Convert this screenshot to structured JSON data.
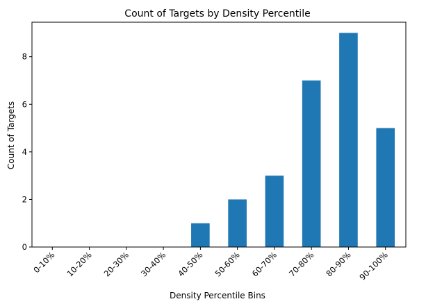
{
  "chart_data": {
    "type": "bar",
    "title": "Count of Targets by Density Percentile",
    "xlabel": "Density Percentile Bins",
    "ylabel": "Count of Targets",
    "categories": [
      "0-10%",
      "10-20%",
      "20-30%",
      "30-40%",
      "40-50%",
      "50-60%",
      "60-70%",
      "70-80%",
      "80-90%",
      "90-100%"
    ],
    "values": [
      0,
      0,
      0,
      0,
      1,
      2,
      3,
      7,
      9,
      5
    ],
    "ylim": [
      0,
      9.45
    ],
    "yticks": [
      0,
      2,
      4,
      6,
      8
    ],
    "grid": false,
    "bar_color": "#1f77b4"
  }
}
